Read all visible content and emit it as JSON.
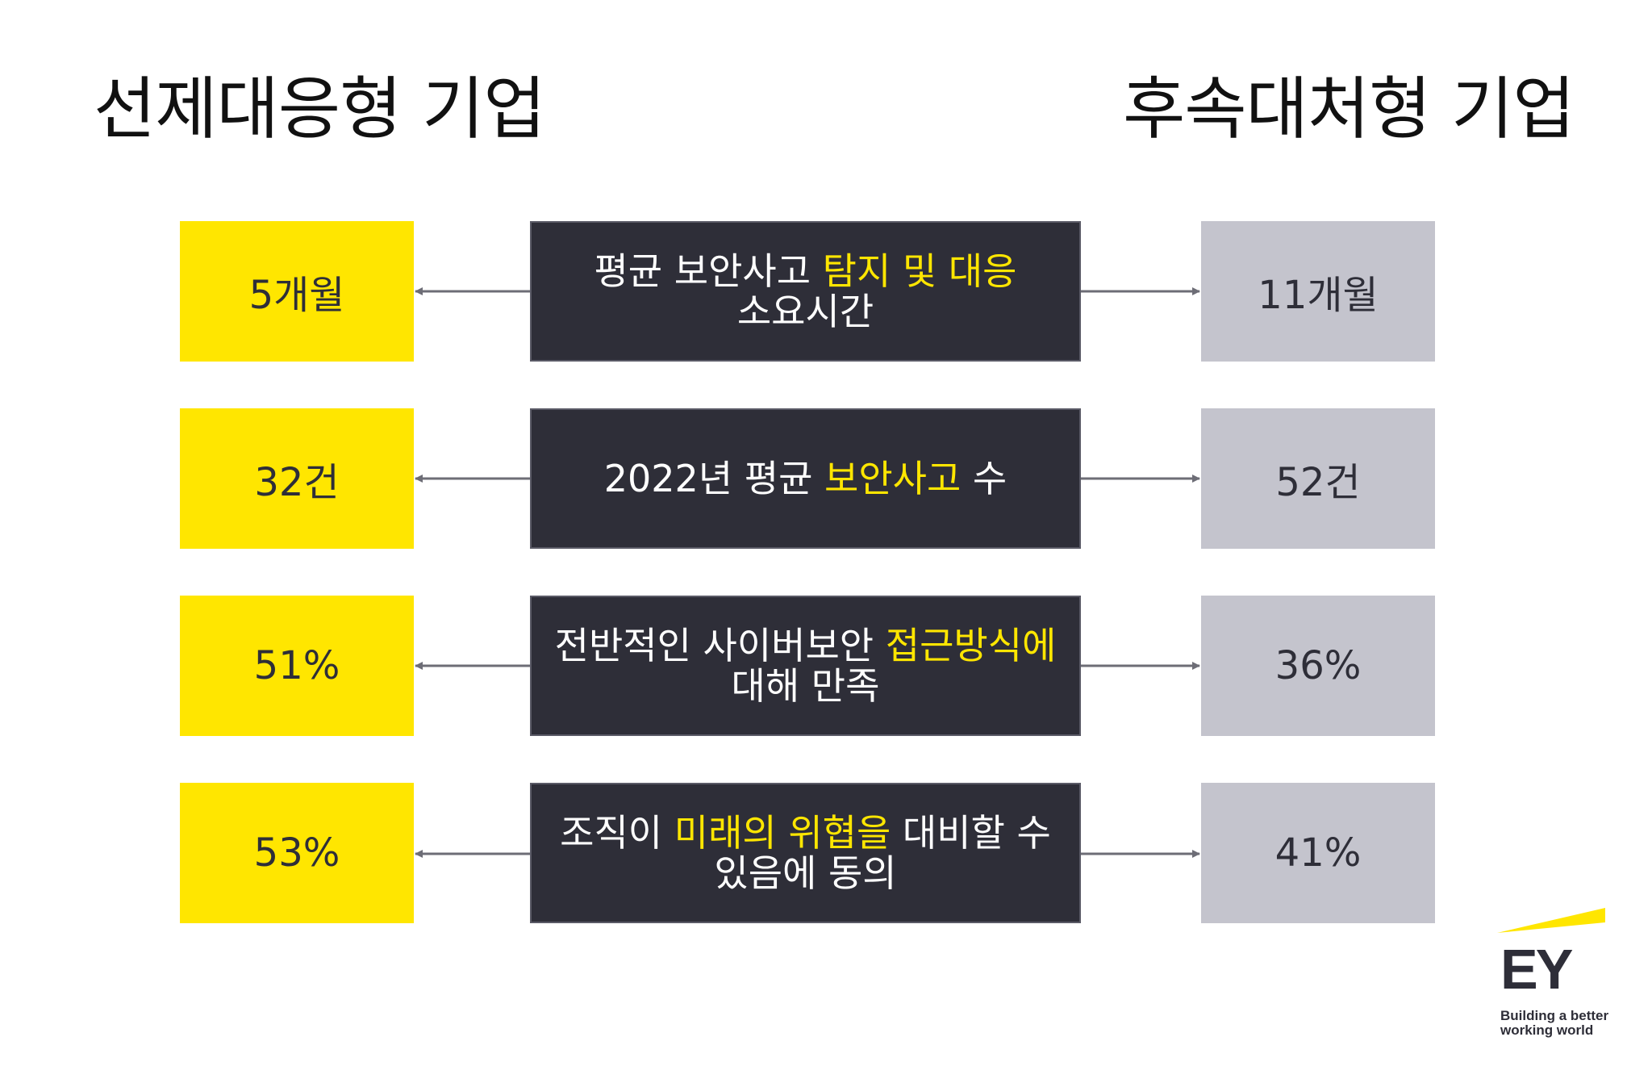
{
  "headings": {
    "left": "선제대응형 기업",
    "right": "후속대처형 기업"
  },
  "rows": [
    {
      "left_value": "5개월",
      "center_line1_pre": "평균 보안사고 ",
      "center_line1_hl": "탐지 및 대응",
      "center_line1_post": "",
      "center_line2_pre": "소요시간",
      "center_line2_hl": "",
      "center_line2_post": "",
      "right_value": "11개월"
    },
    {
      "left_value": "32건",
      "center_line1_pre": "2022년 평균 ",
      "center_line1_hl": "보안사고",
      "center_line1_post": " 수",
      "center_line2_pre": "",
      "center_line2_hl": "",
      "center_line2_post": "",
      "right_value": "52건"
    },
    {
      "left_value": "51%",
      "center_line1_pre": "전반적인 사이버보안 ",
      "center_line1_hl": "접근방식에",
      "center_line1_post": "",
      "center_line2_pre": "대해 만족",
      "center_line2_hl": "",
      "center_line2_post": "",
      "right_value": "36%"
    },
    {
      "left_value": "53%",
      "center_line1_pre": "조직이 ",
      "center_line1_hl": "미래의 위협을",
      "center_line1_post": " 대비할 수",
      "center_line2_pre": "있음에 동의",
      "center_line2_hl": "",
      "center_line2_post": "",
      "right_value": "41%"
    }
  ],
  "logo": {
    "letters": "EY",
    "tagline_line1": "Building a better",
    "tagline_line2": "working world"
  },
  "colors": {
    "accent_yellow": "#ffe600",
    "dark_box": "#2e2e38",
    "gray_box": "#c4c4cd",
    "arrow": "#6d6d76"
  }
}
